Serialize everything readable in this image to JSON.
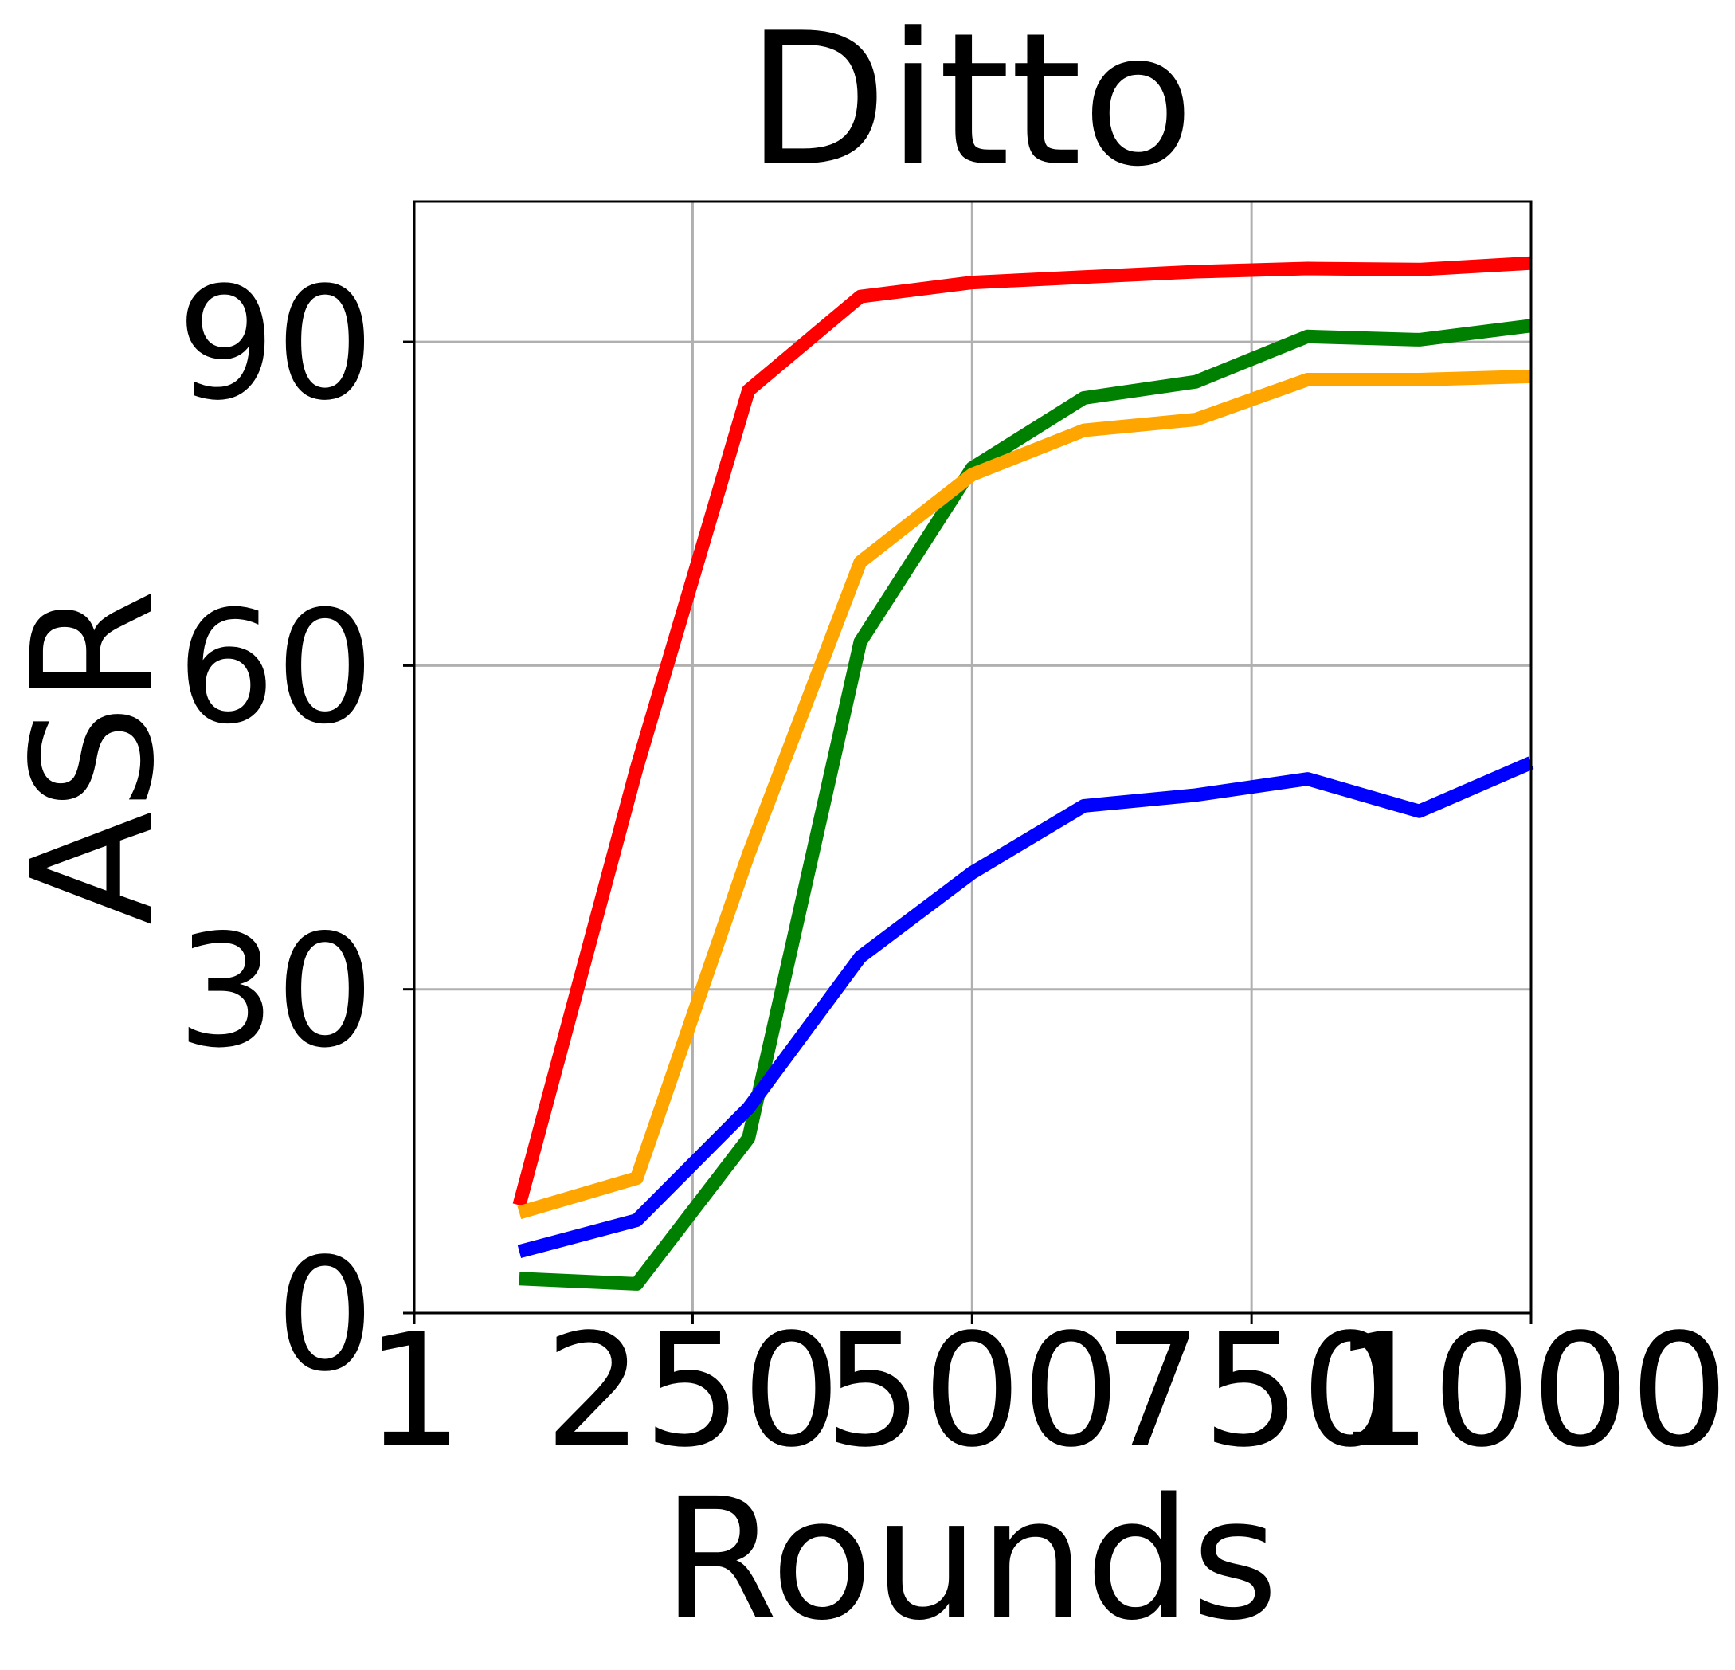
{
  "chart_data": {
    "type": "line",
    "title": "Ditto",
    "xlabel": "Rounds",
    "ylabel": "ASR",
    "xlim": [
      1,
      1000
    ],
    "ylim": [
      0,
      103
    ],
    "x_ticks": [
      1,
      250,
      500,
      750,
      1000
    ],
    "x_tick_labels": [
      "1",
      "250",
      "500",
      "750",
      "1000"
    ],
    "y_ticks": [
      0,
      30,
      60,
      90
    ],
    "y_tick_labels": [
      "0",
      "30",
      "60",
      "90"
    ],
    "grid": true,
    "legend": "none",
    "x": [
      95,
      200,
      300,
      400,
      500,
      600,
      700,
      800,
      900,
      1000
    ],
    "series": [
      {
        "color": "#ff0000",
        "values": [
          10.0,
          50.5,
          85.5,
          94.2,
          95.5,
          96.0,
          96.5,
          96.8,
          96.7,
          97.3
        ]
      },
      {
        "color": "#008000",
        "values": [
          3.2,
          2.7,
          16.2,
          62.2,
          78.3,
          84.8,
          86.3,
          90.5,
          90.2,
          91.5
        ]
      },
      {
        "color": "#ffa500",
        "values": [
          9.3,
          12.5,
          42.5,
          69.6,
          77.7,
          81.8,
          82.8,
          86.5,
          86.5,
          86.8
        ]
      },
      {
        "color": "#0000ff",
        "values": [
          5.7,
          8.6,
          19.0,
          33.0,
          40.8,
          47.0,
          48.0,
          49.5,
          46.5,
          51.0
        ]
      }
    ]
  }
}
